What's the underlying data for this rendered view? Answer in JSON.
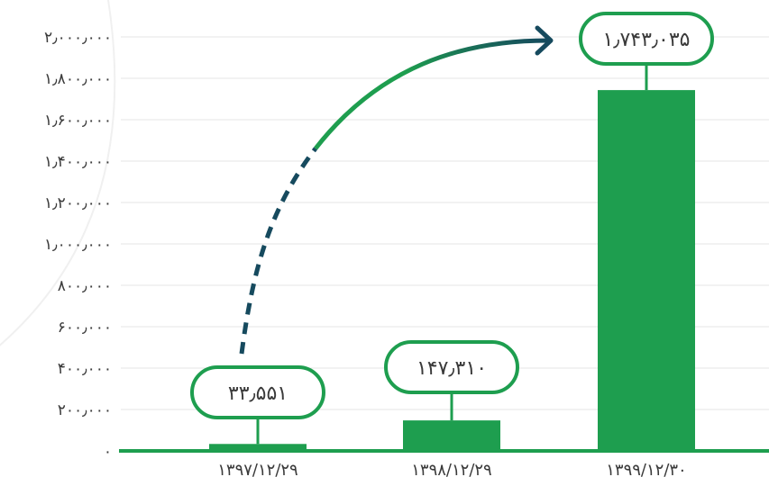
{
  "chart_data": {
    "type": "bar",
    "categories": [
      "۱۳۹۷/۱۲/۲۹",
      "۱۳۹۸/۱۲/۲۹",
      "۱۳۹۹/۱۲/۳۰"
    ],
    "values": [
      33551,
      147310,
      1743035
    ],
    "data_labels": [
      "۳۳٫۵۵۱",
      "۱۴۷٫۳۱۰",
      "۱٫۷۴۳٫۰۳۵"
    ],
    "y_ticks": [
      {
        "value": 0,
        "label": "۰"
      },
      {
        "value": 200000,
        "label": "۲۰۰٫۰۰۰"
      },
      {
        "value": 400000,
        "label": "۴۰۰٫۰۰۰"
      },
      {
        "value": 600000,
        "label": "۶۰۰٫۰۰۰"
      },
      {
        "value": 800000,
        "label": "۸۰۰٫۰۰۰"
      },
      {
        "value": 1000000,
        "label": "۱٫۰۰۰٫۰۰۰"
      },
      {
        "value": 1200000,
        "label": "۱٫۲۰۰٫۰۰۰"
      },
      {
        "value": 1400000,
        "label": "۱٫۴۰۰٫۰۰۰"
      },
      {
        "value": 1600000,
        "label": "۱٫۶۰۰٫۰۰۰"
      },
      {
        "value": 1800000,
        "label": "۱٫۸۰۰٫۰۰۰"
      },
      {
        "value": 2000000,
        "label": "۲٫۰۰۰٫۰۰۰"
      }
    ],
    "ylim": [
      0,
      2000000
    ],
    "grid": true,
    "title": "",
    "xlabel": "",
    "ylabel": "",
    "colors": {
      "bar": "#1e9e4f",
      "axis": "#1e9e4f",
      "axis_dark": "#164a5e",
      "label_border": "#1e9e4f",
      "grid": "#e6e6e6",
      "arrow_dark": "#164a5e"
    }
  }
}
